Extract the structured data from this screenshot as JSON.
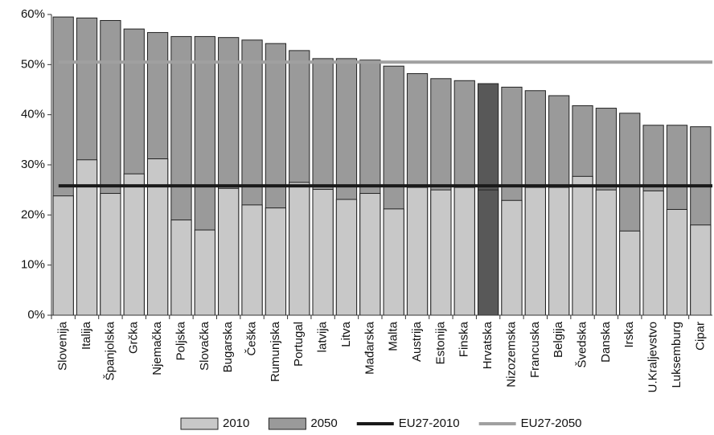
{
  "chart_data": {
    "type": "overlap_bar",
    "categories": [
      "Slovenija",
      "Italija",
      "Španjolska",
      "Grčka",
      "Njemačka",
      "Poljska",
      "Slovačka",
      "Bugarska",
      "Češka",
      "Rumunjska",
      "Portugal",
      "latvija",
      "Litva",
      "Mađarska",
      "Malta",
      "Austrija",
      "Estonija",
      "Finska",
      "Hrvatska",
      "Nizozemska",
      "Francuska",
      "Belgija",
      "Švedska",
      "Danska",
      "Irska",
      "U.Kraljevstvo",
      "Luksemburg",
      "Cipar"
    ],
    "series": [
      {
        "name": "2050",
        "color": "#9a9a9a",
        "values": [
          59.5,
          59.3,
          58.8,
          57.1,
          56.4,
          55.6,
          55.6,
          55.4,
          54.9,
          54.2,
          52.8,
          51.2,
          51.2,
          50.9,
          49.7,
          48.2,
          47.2,
          46.8,
          46.2,
          45.5,
          44.8,
          43.8,
          41.8,
          41.3,
          40.3,
          37.9,
          37.9,
          37.6
        ],
        "colors": [
          "#9a9a9a",
          "#9a9a9a",
          "#9a9a9a",
          "#9a9a9a",
          "#9a9a9a",
          "#9a9a9a",
          "#9a9a9a",
          "#9a9a9a",
          "#9a9a9a",
          "#9a9a9a",
          "#9a9a9a",
          "#9a9a9a",
          "#9a9a9a",
          "#9a9a9a",
          "#9a9a9a",
          "#9a9a9a",
          "#9a9a9a",
          "#9a9a9a",
          "#585858",
          "#9a9a9a",
          "#9a9a9a",
          "#9a9a9a",
          "#9a9a9a",
          "#9a9a9a",
          "#9a9a9a",
          "#9a9a9a",
          "#9a9a9a",
          "#9a9a9a"
        ]
      },
      {
        "name": "2010",
        "color": "#c8c8c8",
        "values": [
          23.8,
          31,
          24.3,
          28.2,
          31.2,
          19,
          17,
          25.3,
          22,
          21.4,
          26.5,
          25.1,
          23.1,
          24.3,
          21.2,
          25.5,
          25,
          25.5,
          25,
          22.9,
          25.5,
          25.5,
          27.7,
          25,
          16.8,
          24.8,
          21.1,
          18
        ],
        "colors": [
          "#c8c8c8",
          "#c8c8c8",
          "#c8c8c8",
          "#c8c8c8",
          "#c8c8c8",
          "#c8c8c8",
          "#c8c8c8",
          "#c8c8c8",
          "#c8c8c8",
          "#c8c8c8",
          "#c8c8c8",
          "#c8c8c8",
          "#c8c8c8",
          "#c8c8c8",
          "#c8c8c8",
          "#c8c8c8",
          "#c8c8c8",
          "#c8c8c8",
          "#585858",
          "#c8c8c8",
          "#c8c8c8",
          "#c8c8c8",
          "#c8c8c8",
          "#c8c8c8",
          "#c8c8c8",
          "#c8c8c8",
          "#c8c8c8",
          "#c8c8c8"
        ]
      }
    ],
    "reference_lines": [
      {
        "name": "EU27-2010",
        "value": 25.8,
        "color": "#1a1a1a"
      },
      {
        "name": "EU27-2050",
        "value": 50.5,
        "color": "#a0a0a0"
      }
    ],
    "legend_order": [
      1,
      0
    ],
    "ylim": [
      0,
      60
    ],
    "yticks": [
      {
        "value": 0,
        "label": "0%"
      },
      {
        "value": 10,
        "label": "10%"
      },
      {
        "value": 20,
        "label": "20%"
      },
      {
        "value": 30,
        "label": "30%"
      },
      {
        "value": 40,
        "label": "40%"
      },
      {
        "value": 50,
        "label": "50%"
      },
      {
        "value": 60,
        "label": "60%"
      }
    ]
  }
}
